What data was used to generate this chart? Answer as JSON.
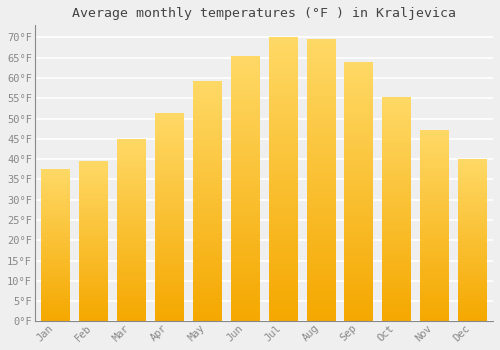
{
  "title": "Average monthly temperatures (°F ) in Kraljevica",
  "months": [
    "Jan",
    "Feb",
    "Mar",
    "Apr",
    "May",
    "Jun",
    "Jul",
    "Aug",
    "Sep",
    "Oct",
    "Nov",
    "Dec"
  ],
  "values": [
    37.4,
    39.4,
    44.8,
    51.1,
    59.0,
    65.1,
    69.8,
    69.3,
    63.7,
    55.2,
    46.9,
    39.9
  ],
  "bar_color_bottom": "#F5A800",
  "bar_color_top": "#FFD966",
  "bar_edge_color": "none",
  "background_color": "#EFEFEF",
  "grid_color": "#FFFFFF",
  "tick_color": "#888888",
  "title_color": "#444444",
  "label_color": "#888888",
  "ylim": [
    0,
    73
  ],
  "yticks": [
    0,
    5,
    10,
    15,
    20,
    25,
    30,
    35,
    40,
    45,
    50,
    55,
    60,
    65,
    70
  ],
  "ytick_labels": [
    "0°F",
    "5°F",
    "10°F",
    "15°F",
    "20°F",
    "25°F",
    "30°F",
    "35°F",
    "40°F",
    "45°F",
    "50°F",
    "55°F",
    "60°F",
    "65°F",
    "70°F"
  ],
  "title_fontsize": 9.5,
  "tick_fontsize": 7.5,
  "font_family": "monospace"
}
